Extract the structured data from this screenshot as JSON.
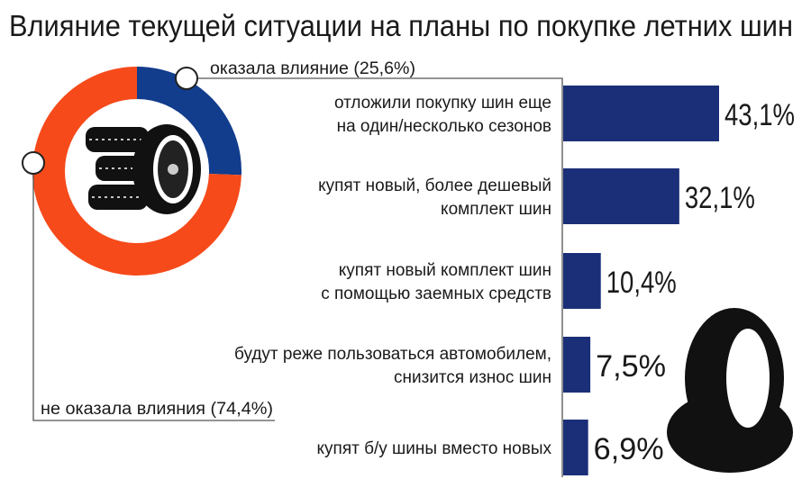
{
  "chart_data": [
    {
      "type": "pie",
      "variant": "donut",
      "title": "Влияние текущей ситуации на планы по покупке летних шин",
      "slices": [
        {
          "label": "оказала влияние (25,6%)",
          "value": 25.6,
          "color": "#123c8c"
        },
        {
          "label": "не оказала влияния (74,4%)",
          "value": 74.4,
          "color": "#f64a1a"
        }
      ],
      "center_icon": "tire-stack-icon"
    },
    {
      "type": "bar",
      "orientation": "horizontal",
      "categories": [
        [
          "отложили покупку шин еще",
          "на один/несколько сезонов"
        ],
        [
          "купят новый, более дешевый",
          "комплект шин"
        ],
        [
          "купят новый комплект шин",
          "с помощью заемных средств"
        ],
        [
          "будут реже пользоваться автомобилем,",
          "снизится износ шин"
        ],
        [
          "купят б/у шины вместо новых"
        ]
      ],
      "values": [
        43.1,
        32.1,
        10.4,
        7.5,
        6.9
      ],
      "value_labels": [
        "43,1%",
        "32,1%",
        "10,4%",
        "7,5%",
        "6,9%"
      ],
      "color": "#1b2f78",
      "xlim": [
        0,
        50
      ],
      "decoration_icon": "tire-icon"
    }
  ]
}
